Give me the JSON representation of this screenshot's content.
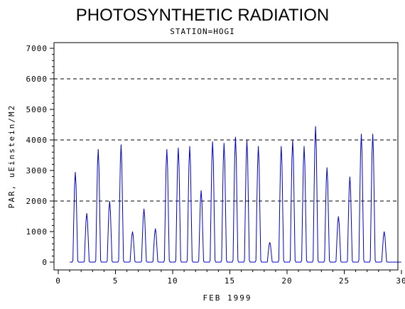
{
  "chart_data": {
    "type": "line",
    "title": "PHOTOSYNTHETIC RADIATION",
    "subtitle": "STATION=HOGI",
    "xlabel": "FEB 1999",
    "ylabel": "PAR, uEinstein/M2",
    "xlim": [
      0,
      30
    ],
    "ylim": [
      0,
      7000
    ],
    "x_ticks": [
      0,
      5,
      10,
      15,
      20,
      25,
      30
    ],
    "y_ticks": [
      0,
      1000,
      2000,
      3000,
      4000,
      5000,
      6000,
      7000
    ],
    "reference_lines": [
      2000,
      4000,
      6000
    ],
    "line_color": "#0000cc",
    "grid": false,
    "daily_series": {
      "name": "PAR",
      "x": [
        1,
        2,
        3,
        4,
        5,
        6,
        7,
        8,
        9,
        10,
        11,
        12,
        13,
        14,
        15,
        16,
        17,
        18,
        19,
        20,
        21,
        22,
        23,
        24,
        25,
        26,
        27,
        28,
        29
      ],
      "values": [
        2950,
        1600,
        3700,
        2000,
        3850,
        1000,
        1750,
        1100,
        3700,
        3750,
        3800,
        2350,
        3950,
        3900,
        4100,
        4000,
        3800,
        650,
        3800,
        4000,
        3800,
        4450,
        3100,
        1500,
        2800,
        4200,
        4200,
        1000,
        0
      ]
    }
  }
}
